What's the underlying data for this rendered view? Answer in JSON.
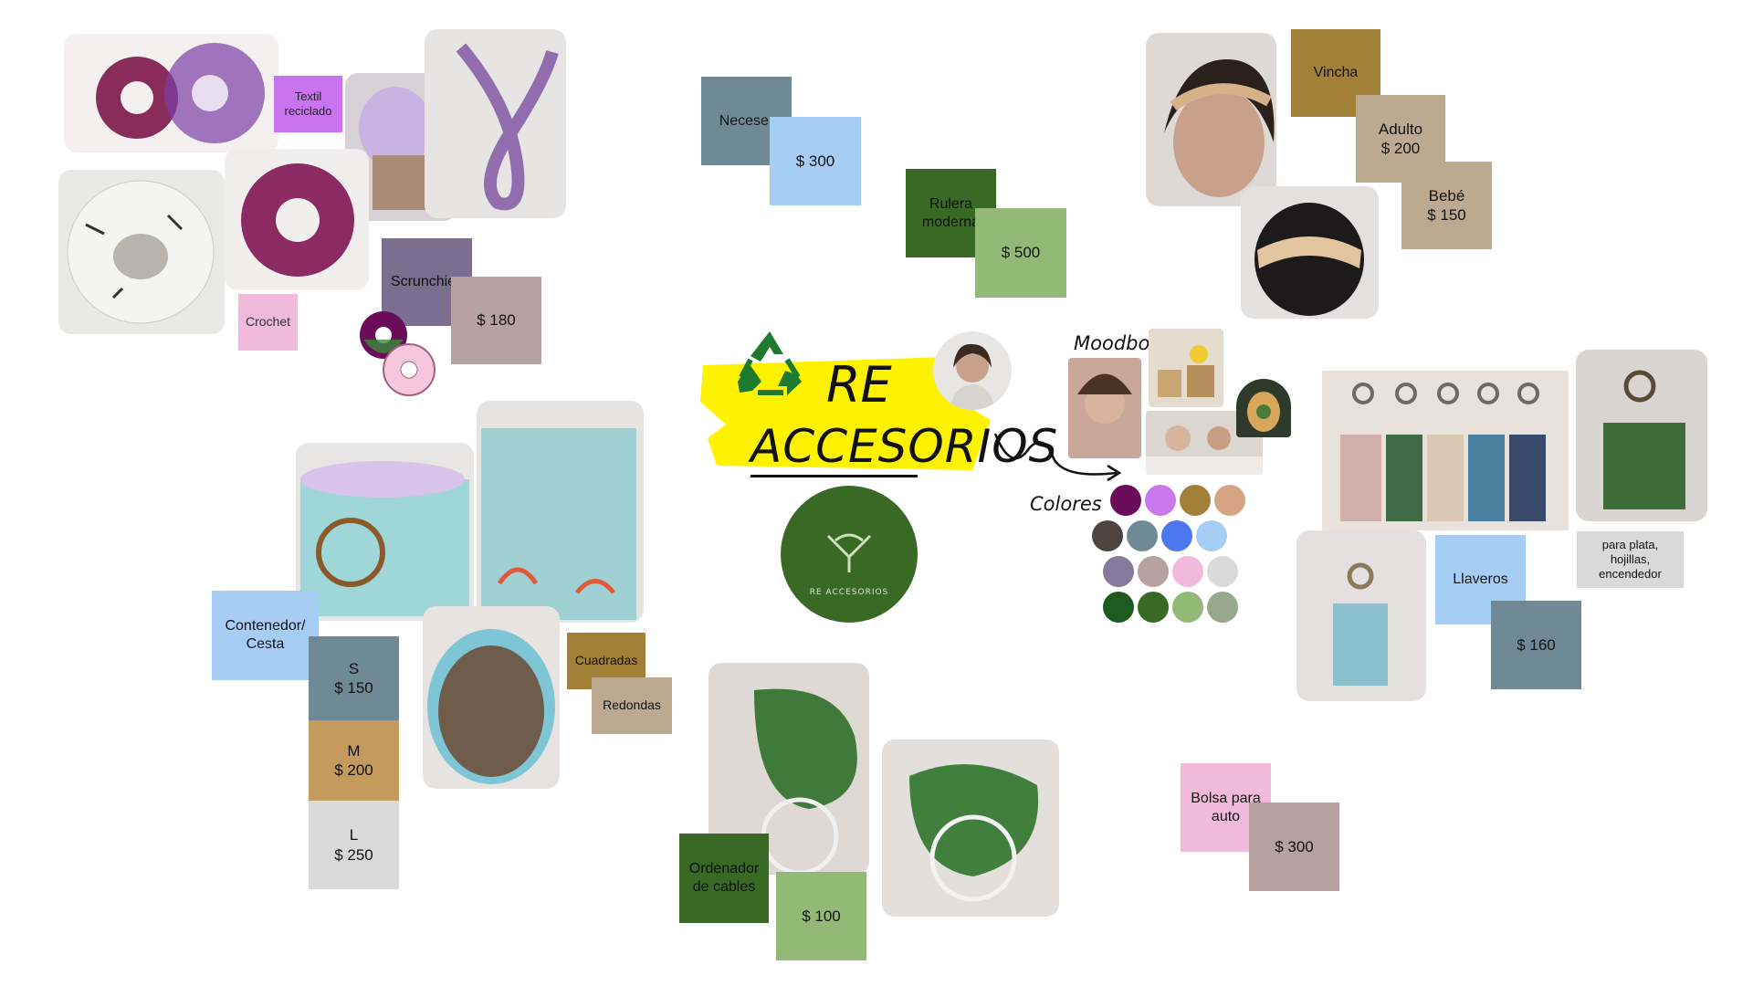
{
  "title": {
    "line1": "RE",
    "line2": "ACCESORIOS"
  },
  "logo_text": "RE ACCESORIOS",
  "moodboard": {
    "title": "Moodboard",
    "colors_label": "Colores"
  },
  "palette": [
    "#6a0c59",
    "#c979ec",
    "#a38038",
    "#d5a583",
    "#4e4540",
    "#708a95",
    "#4d77ee",
    "#a6cdf4",
    "#857a9c",
    "#b5a2a1",
    "#f1b9da",
    "#d9d9d9",
    "#1e5b1f",
    "#386925",
    "#92ba76",
    "#98a98b"
  ],
  "scrunchies": {
    "textil": "Textil\nreciclado",
    "crochet": "Crochet",
    "label": "Scrunchies",
    "price": "$ 180"
  },
  "neceser": {
    "label": "Neceser",
    "price": "$ 300"
  },
  "rulera": {
    "label": "Rulera\nmoderna",
    "price": "$ 500"
  },
  "vincha": {
    "label": "Vincha",
    "adulto": "Adulto\n$ 200",
    "bebe": "Bebé\n$ 150"
  },
  "llaveros": {
    "label": "Llaveros",
    "price": "$ 160",
    "note": "para plata,\nhojillas,\nencendedor"
  },
  "contenedor": {
    "label": "Contenedor/\nCesta",
    "s": "S\n$ 150",
    "m": "M\n$ 200",
    "l": "L\n$ 250",
    "cuadradas": "Cuadradas",
    "redondas": "Redondas"
  },
  "ordenador": {
    "label": "Ordenador\nde cables",
    "price": "$ 100"
  },
  "bolsa": {
    "label": "Bolsa para\nauto",
    "price": "$ 300"
  }
}
